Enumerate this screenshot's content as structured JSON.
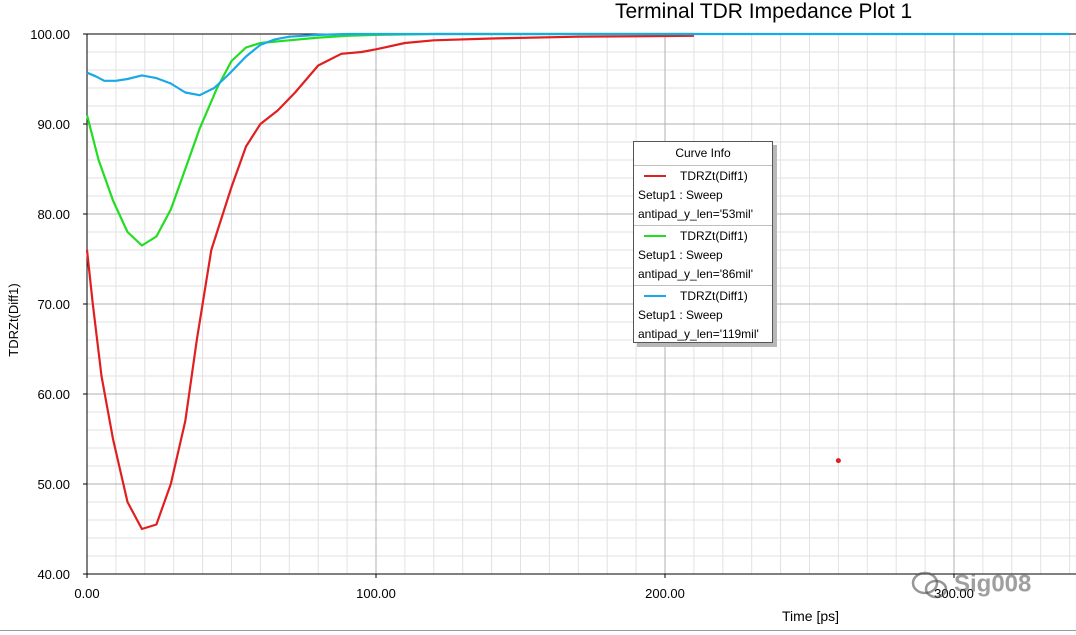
{
  "chart_data": {
    "type": "line",
    "title": "Terminal TDR Impedance Plot 1",
    "xlabel": "Time [ps]",
    "ylabel": "TDRZt(Diff1)",
    "xlim": [
      0,
      330
    ],
    "ylim": [
      40,
      100
    ],
    "x_ticks": [
      0,
      100,
      200,
      300
    ],
    "x_tick_labels": [
      "0.00",
      "100.00",
      "200.00",
      "300.00"
    ],
    "y_ticks": [
      40,
      50,
      60,
      70,
      80,
      90,
      100
    ],
    "y_tick_labels": [
      "40.00",
      "50.00",
      "60.00",
      "70.00",
      "80.00",
      "90.00",
      "100.00"
    ],
    "grid": true,
    "legend_position": "center-right",
    "legend_title": "Curve Info",
    "series": [
      {
        "name": "TDRZt(Diff1)",
        "setup": "Setup1 : Sweep",
        "param": "antipad_y_len='53mil'",
        "color": "#e02020",
        "x": [
          0,
          2,
          5,
          9,
          14,
          19,
          24,
          29,
          34,
          38,
          43,
          50,
          55,
          60,
          66,
          72,
          80,
          88,
          95,
          100,
          110,
          120,
          140,
          170,
          210
        ],
        "y": [
          76.0,
          70.0,
          62.0,
          55.0,
          48.0,
          45.0,
          45.5,
          50.0,
          57.0,
          66.0,
          76.0,
          83.0,
          87.5,
          90.0,
          91.5,
          93.5,
          96.5,
          97.8,
          98.0,
          98.3,
          99.0,
          99.3,
          99.5,
          99.7,
          99.8
        ]
      },
      {
        "name": "TDRZt(Diff1)",
        "setup": "Setup1 : Sweep",
        "param": "antipad_y_len='86mil'",
        "color": "#22dd22",
        "x": [
          0,
          4,
          9,
          14,
          19,
          24,
          29,
          34,
          39,
          45,
          50,
          55,
          60,
          70,
          80,
          90,
          100,
          120,
          150,
          210
        ],
        "y": [
          91.0,
          86.0,
          81.5,
          78.0,
          76.5,
          77.5,
          80.5,
          85.0,
          89.5,
          94.0,
          97.0,
          98.5,
          99.0,
          99.3,
          99.6,
          99.8,
          99.9,
          100.0,
          100.0,
          100.0
        ]
      },
      {
        "name": "TDRZt(Diff1)",
        "setup": "Setup1 : Sweep",
        "param": "antipad_y_len='119mil'",
        "color": "#19a8e8",
        "x": [
          0,
          3,
          6,
          10,
          14,
          19,
          24,
          29,
          34,
          39,
          44,
          49,
          55,
          60,
          65,
          70,
          80,
          90,
          100,
          120,
          150,
          200,
          260,
          326,
          340
        ],
        "y": [
          95.7,
          95.3,
          94.8,
          94.8,
          95.0,
          95.4,
          95.1,
          94.5,
          93.5,
          93.2,
          94.0,
          95.5,
          97.5,
          98.8,
          99.4,
          99.7,
          99.9,
          100.0,
          100.0,
          100.0,
          100.0,
          100.0,
          100.0,
          100.0,
          100.0
        ]
      }
    ],
    "annotations": [
      {
        "x": 260,
        "y": 52.6,
        "kind": "marker-dot",
        "color": "#e02020"
      }
    ]
  },
  "watermark": {
    "text": "Sig008"
  },
  "colors": {
    "axis": "#000000",
    "grid_major": "#b0b0b0",
    "grid_minor": "#e2e2e2",
    "highlight_underline": "#e02020"
  }
}
